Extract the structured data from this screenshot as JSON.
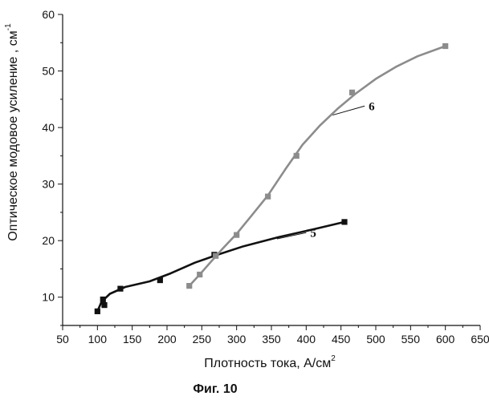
{
  "chart_data": {
    "type": "line",
    "xlabel": "Плотность тока, А/см",
    "xlabel_sup": "2",
    "ylabel": "Оптическое модовое усиление , см",
    "ylabel_sup": "-1",
    "caption": "Фиг. 10",
    "xlim": [
      50,
      650
    ],
    "ylim": [
      5,
      60
    ],
    "x_ticks": [
      "50",
      "100",
      "150",
      "200",
      "250",
      "300",
      "350",
      "400",
      "450",
      "500",
      "550",
      "600",
      "650"
    ],
    "y_ticks": [
      "10",
      "20",
      "30",
      "40",
      "50",
      "60"
    ],
    "grid": false,
    "series": [
      {
        "name": "5",
        "color": "#111111",
        "points": [
          [
            100,
            7.5
          ],
          [
            108,
            9.6
          ],
          [
            110,
            8.6
          ],
          [
            133,
            11.5
          ],
          [
            190,
            13
          ],
          [
            268,
            17.5
          ],
          [
            455,
            23.3
          ]
        ],
        "curve": [
          [
            100,
            7.5
          ],
          [
            106,
            9.2
          ],
          [
            118,
            10.6
          ],
          [
            140,
            11.8
          ],
          [
            175,
            12.8
          ],
          [
            205,
            14.2
          ],
          [
            240,
            16.1
          ],
          [
            270,
            17.4
          ],
          [
            310,
            19.0
          ],
          [
            360,
            20.6
          ],
          [
            410,
            22.0
          ],
          [
            455,
            23.3
          ]
        ],
        "label_line": [
          [
            358,
            20.3
          ],
          [
            400,
            21.4
          ]
        ]
      },
      {
        "name": "6",
        "color": "#8c8c8c",
        "points": [
          [
            232,
            12
          ],
          [
            247,
            14
          ],
          [
            270,
            17.3
          ],
          [
            300,
            21
          ],
          [
            345,
            27.8
          ],
          [
            386,
            35
          ],
          [
            466,
            46.2
          ],
          [
            600,
            54.4
          ]
        ],
        "curve": [
          [
            232,
            12
          ],
          [
            247,
            14
          ],
          [
            262,
            16.1
          ],
          [
            280,
            18.6
          ],
          [
            300,
            21.2
          ],
          [
            320,
            24.2
          ],
          [
            345,
            28.0
          ],
          [
            370,
            32.6
          ],
          [
            395,
            37.0
          ],
          [
            420,
            40.4
          ],
          [
            445,
            43.3
          ],
          [
            470,
            45.9
          ],
          [
            500,
            48.6
          ],
          [
            530,
            50.8
          ],
          [
            560,
            52.6
          ],
          [
            600,
            54.4
          ]
        ],
        "label_line": [
          [
            438,
            42.2
          ],
          [
            484,
            43.8
          ]
        ]
      }
    ]
  }
}
